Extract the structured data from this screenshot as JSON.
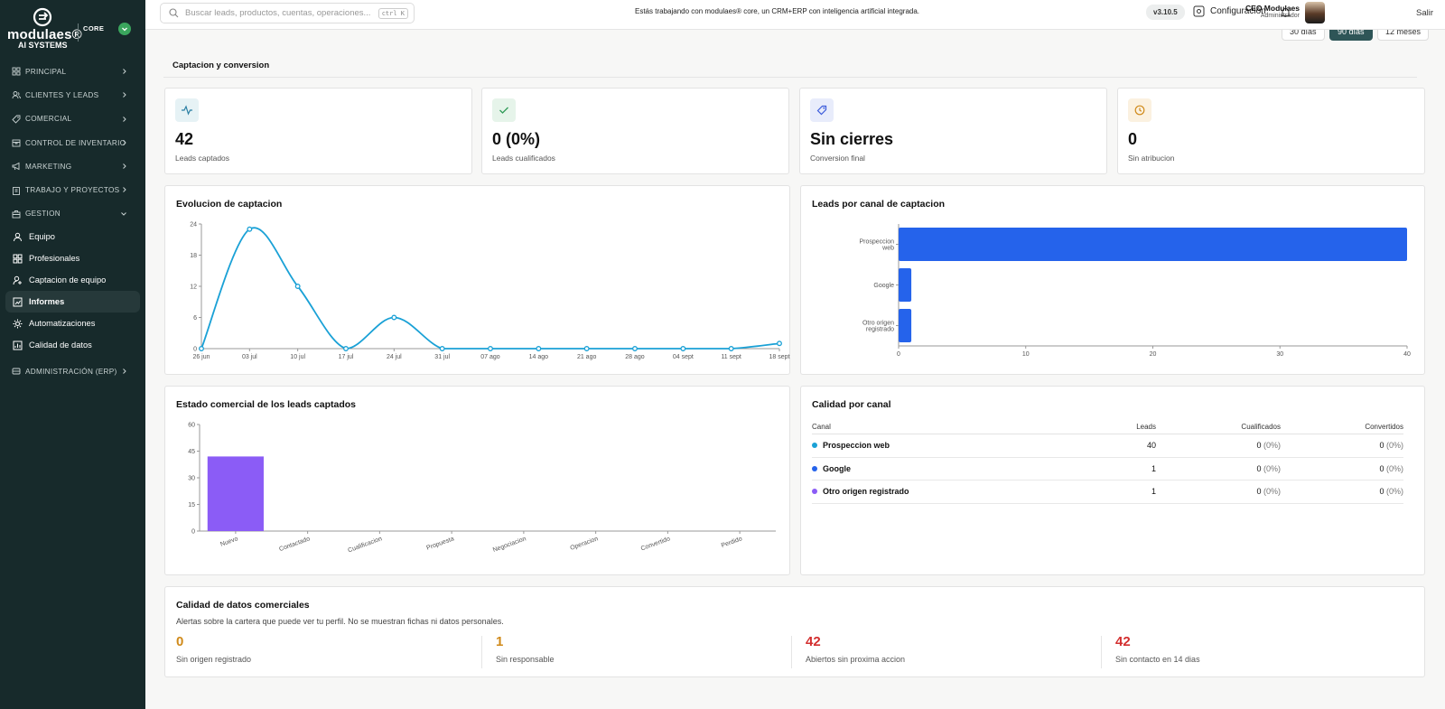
{
  "brand": {
    "name": "modulaes®",
    "sub": "AI SYSTEMS",
    "edition": "CORE"
  },
  "sidebar": {
    "sections": [
      {
        "label": "PRINCIPAL",
        "icon": "grid-icon"
      },
      {
        "label": "CLIENTES Y LEADS",
        "icon": "users-icon"
      },
      {
        "label": "COMERCIAL",
        "icon": "tag-icon"
      },
      {
        "label": "CONTROL DE INVENTARIO",
        "icon": "box-icon"
      },
      {
        "label": "MARKETING",
        "icon": "megaphone-icon"
      },
      {
        "label": "TRABAJO Y PROYECTOS",
        "icon": "clipboard-icon"
      },
      {
        "label": "GESTION",
        "icon": "briefcase-icon"
      }
    ],
    "items": [
      {
        "label": "Equipo"
      },
      {
        "label": "Profesionales"
      },
      {
        "label": "Captacion de equipo"
      },
      {
        "label": "Informes"
      },
      {
        "label": "Automatizaciones"
      },
      {
        "label": "Calidad de datos"
      }
    ],
    "footer_section": {
      "label": "ADMINISTRACIÓN (ERP)"
    }
  },
  "topbar": {
    "search_placeholder": "Buscar leads, productos, cuentas, operaciones...",
    "search_shortcut": "ctrl K",
    "message": "Estás trabajando con modulaes® core, un CRM+ERP con inteligencia artificial integrada.",
    "version": "v3.10.5",
    "config_label": "Configuración",
    "user_name": "CEO Modulaes",
    "user_role": "Administrador",
    "logout": "Salir"
  },
  "ranges": [
    "30 días",
    "90 días",
    "12 meses"
  ],
  "section_title": "Captacion y conversion",
  "kpis": [
    {
      "value": "42",
      "label": "Leads captados",
      "icon": "activity-icon",
      "color": "#2a7fa3",
      "bg": "#e6f2f5"
    },
    {
      "value": "0 (0%)",
      "label": "Leads cualificados",
      "icon": "check-icon",
      "color": "#2f9a57",
      "bg": "#e6f4ea"
    },
    {
      "value": "Sin cierres",
      "label": "Conversion final",
      "icon": "tag-icon",
      "color": "#3b5bdb",
      "bg": "#e8ecfb"
    },
    {
      "value": "0",
      "label": "Sin atribucion",
      "icon": "clock-icon",
      "color": "#d08a1a",
      "bg": "#fbf1e0"
    }
  ],
  "line_chart": {
    "title": "Evolucion de captacion",
    "chart_data": {
      "type": "line",
      "x": [
        "26 jun",
        "03 jul",
        "10 jul",
        "17 jul",
        "24 jul",
        "31 jul",
        "07 ago",
        "14 ago",
        "21 ago",
        "28 ago",
        "04 sept",
        "11 sept",
        "18 sept"
      ],
      "y": [
        0,
        23,
        12,
        0,
        6,
        0,
        0,
        0,
        0,
        0,
        0,
        0,
        1
      ],
      "yticks": [
        0,
        6,
        12,
        18,
        24
      ],
      "ylim": [
        0,
        24
      ],
      "color": "#1aa1d6"
    }
  },
  "hbar_chart": {
    "title": "Leads por canal de captacion",
    "chart_data": {
      "type": "bar",
      "orientation": "horizontal",
      "categories": [
        "Prospeccion web",
        "Google",
        "Otro origen registrado"
      ],
      "values": [
        40,
        1,
        1
      ],
      "xticks": [
        0,
        10,
        20,
        30,
        40
      ],
      "xlim": [
        0,
        40
      ],
      "color": "#2563eb"
    }
  },
  "vbar_chart": {
    "title": "Estado comercial de los leads captados",
    "chart_data": {
      "type": "bar",
      "categories": [
        "Nuevo",
        "Contactado",
        "Cualificacion",
        "Propuesta",
        "Negociacion",
        "Operacion",
        "Convertido",
        "Perdido"
      ],
      "values": [
        42,
        0,
        0,
        0,
        0,
        0,
        0,
        0
      ],
      "yticks": [
        0,
        15,
        30,
        45,
        60
      ],
      "ylim": [
        0,
        60
      ],
      "color": "#8b5cf6"
    }
  },
  "quality_table": {
    "title": "Calidad por canal",
    "headers": {
      "canal": "Canal",
      "leads": "Leads",
      "cualificados": "Cualificados",
      "convertidos": "Convertidos"
    },
    "rows": [
      {
        "canal": "Prospeccion web",
        "leads": "40",
        "cual": "0",
        "cual_pct": "(0%)",
        "conv": "0",
        "conv_pct": "(0%)",
        "color": "#1aa1d6"
      },
      {
        "canal": "Google",
        "leads": "1",
        "cual": "0",
        "cual_pct": "(0%)",
        "conv": "0",
        "conv_pct": "(0%)",
        "color": "#2563eb"
      },
      {
        "canal": "Otro origen registrado",
        "leads": "1",
        "cual": "0",
        "cual_pct": "(0%)",
        "conv": "0",
        "conv_pct": "(0%)",
        "color": "#8b5cf6"
      }
    ]
  },
  "data_quality": {
    "title": "Calidad de datos comerciales",
    "subtitle": "Alertas sobre la cartera que puede ver tu perfil. No se muestran fichas ni datos personales.",
    "items": [
      {
        "value": "0",
        "label": "Sin origen registrado",
        "color": "#d08a1a"
      },
      {
        "value": "1",
        "label": "Sin responsable",
        "color": "#d08a1a"
      },
      {
        "value": "42",
        "label": "Abiertos sin proxima accion",
        "color": "#d32f2f"
      },
      {
        "value": "42",
        "label": "Sin contacto en 14 dias",
        "color": "#d32f2f"
      }
    ]
  }
}
